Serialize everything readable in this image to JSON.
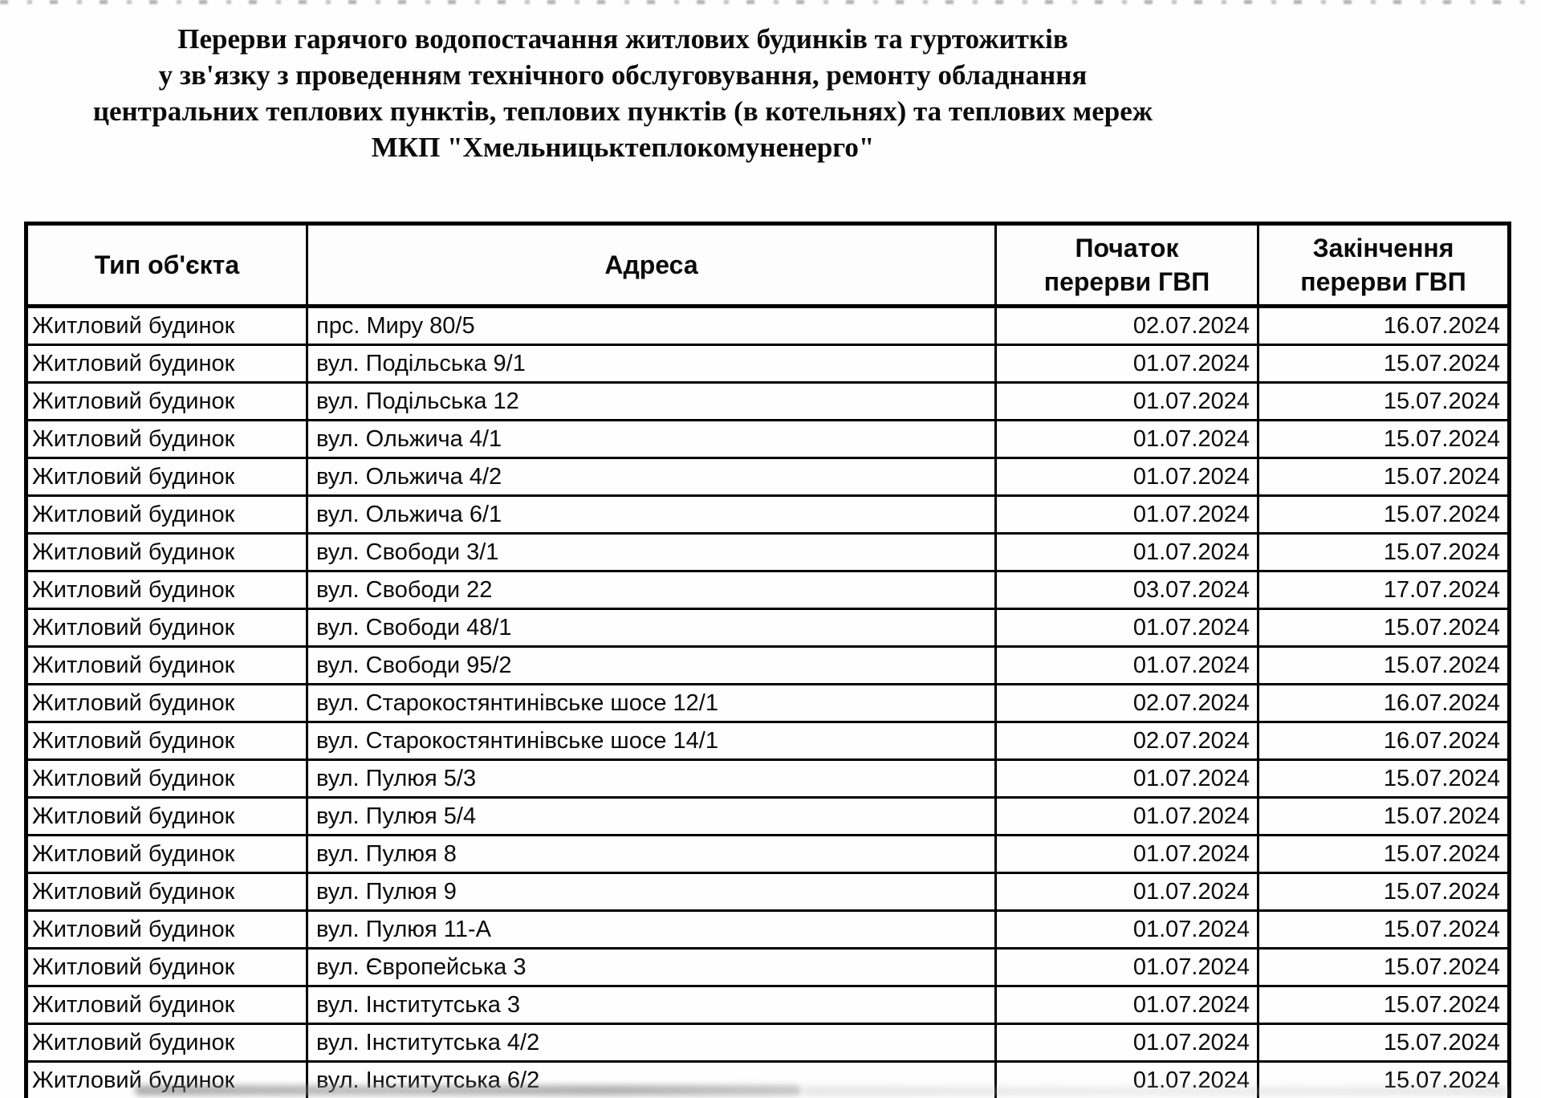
{
  "document": {
    "title_lines": [
      "Перерви гарячого водопостачання житлових будинків та гуртожитків",
      "у зв'язку з проведенням технічного обслуговування, ремонту обладнання",
      "центральних теплових пунктів, теплових пунктів (в котельнях) та теплових мереж",
      "МКП  \"Хмельницьктеплокомуненерго\""
    ]
  },
  "table": {
    "headers": {
      "type": "Тип об'єкта",
      "address": "Адреса",
      "start_line1": "Початок",
      "start_line2": "перерви ГВП",
      "end_line1": "Закінчення",
      "end_line2": "перерви ГВП"
    },
    "rows": [
      {
        "type": "Житловий будинок",
        "address": "прс. Миру 80/5",
        "start": "02.07.2024",
        "end": "16.07.2024"
      },
      {
        "type": "Житловий будинок",
        "address": "вул. Подільська 9/1",
        "start": "01.07.2024",
        "end": "15.07.2024"
      },
      {
        "type": "Житловий будинок",
        "address": "вул. Подільська 12",
        "start": "01.07.2024",
        "end": "15.07.2024"
      },
      {
        "type": "Житловий будинок",
        "address": "вул. Ольжича 4/1",
        "start": "01.07.2024",
        "end": "15.07.2024"
      },
      {
        "type": "Житловий будинок",
        "address": "вул. Ольжича 4/2",
        "start": "01.07.2024",
        "end": "15.07.2024"
      },
      {
        "type": "Житловий будинок",
        "address": "вул. Ольжича 6/1",
        "start": "01.07.2024",
        "end": "15.07.2024"
      },
      {
        "type": "Житловий будинок",
        "address": "вул. Свободи 3/1",
        "start": "01.07.2024",
        "end": "15.07.2024"
      },
      {
        "type": "Житловий будинок",
        "address": "вул. Свободи 22",
        "start": "03.07.2024",
        "end": "17.07.2024"
      },
      {
        "type": "Житловий будинок",
        "address": "вул. Свободи 48/1",
        "start": "01.07.2024",
        "end": "15.07.2024"
      },
      {
        "type": "Житловий будинок",
        "address": "вул. Свободи 95/2",
        "start": "01.07.2024",
        "end": "15.07.2024"
      },
      {
        "type": "Житловий будинок",
        "address": "вул. Старокостянтинівське шосе 12/1",
        "start": "02.07.2024",
        "end": "16.07.2024"
      },
      {
        "type": "Житловий будинок",
        "address": "вул. Старокостянтинівське шосе 14/1",
        "start": "02.07.2024",
        "end": "16.07.2024"
      },
      {
        "type": "Житловий будинок",
        "address": "вул. Пулюя 5/3",
        "start": "01.07.2024",
        "end": "15.07.2024"
      },
      {
        "type": "Житловий будинок",
        "address": "вул. Пулюя 5/4",
        "start": "01.07.2024",
        "end": "15.07.2024"
      },
      {
        "type": "Житловий будинок",
        "address": "вул. Пулюя 8",
        "start": "01.07.2024",
        "end": "15.07.2024"
      },
      {
        "type": "Житловий будинок",
        "address": "вул. Пулюя 9",
        "start": "01.07.2024",
        "end": "15.07.2024"
      },
      {
        "type": "Житловий будинок",
        "address": "вул. Пулюя 11-А",
        "start": "01.07.2024",
        "end": "15.07.2024"
      },
      {
        "type": "Житловий будинок",
        "address": "вул. Європейська 3",
        "start": "01.07.2024",
        "end": "15.07.2024"
      },
      {
        "type": "Житловий будинок",
        "address": "вул. Інститутська 3",
        "start": "01.07.2024",
        "end": "15.07.2024"
      },
      {
        "type": "Житловий будинок",
        "address": "вул. Інститутська 4/2",
        "start": "01.07.2024",
        "end": "15.07.2024"
      },
      {
        "type": "Житловий будинок",
        "address": "вул. Інститутська 6/2",
        "start": "01.07.2024",
        "end": "15.07.2024"
      }
    ]
  },
  "colors": {
    "text": "#0a0a0a",
    "border": "#000000",
    "background": "#ffffff"
  }
}
